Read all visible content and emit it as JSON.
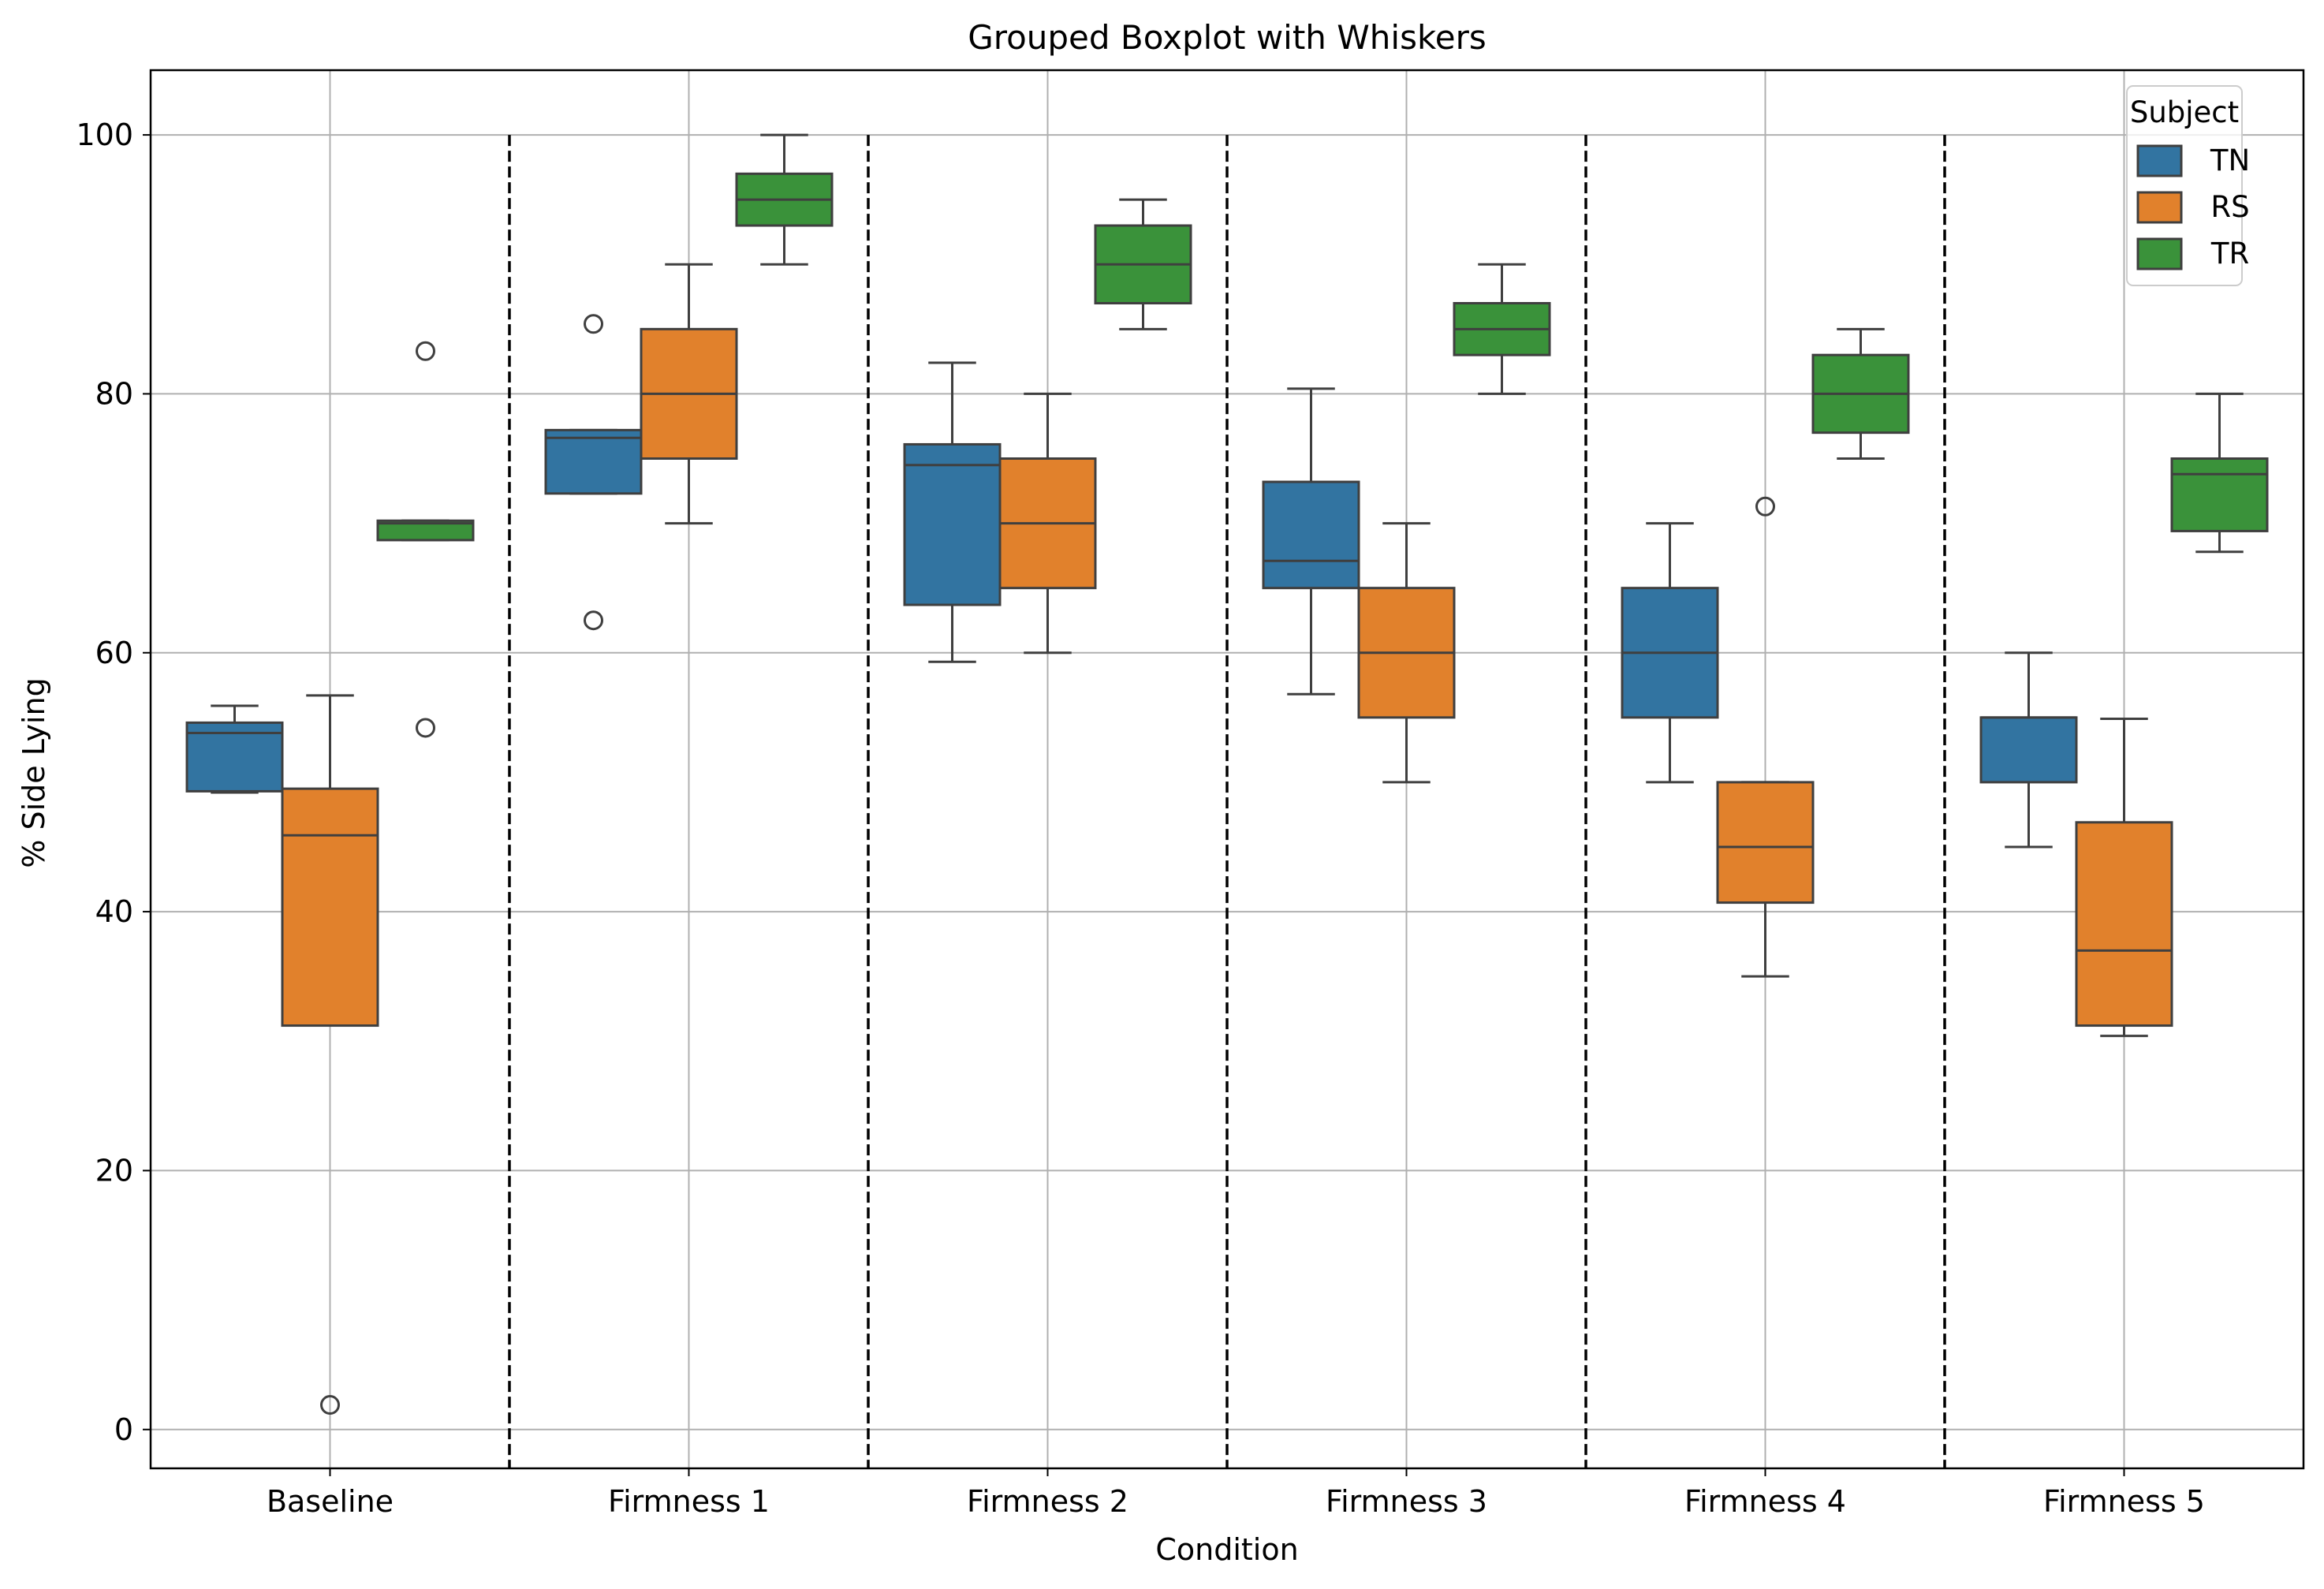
{
  "chart_data": {
    "type": "box",
    "title": "Grouped Boxplot with Whiskers",
    "xlabel": "Condition",
    "ylabel": "% Side Lying",
    "ylim": [
      -3,
      105
    ],
    "yticks": [
      0,
      20,
      40,
      60,
      80,
      100
    ],
    "grid": true,
    "legend_placement": "top-right",
    "legend_title": "Subject",
    "separators": "dashed vertical lines between conditions",
    "categories": [
      "Baseline",
      "Firmness 1",
      "Firmness 2",
      "Firmness 3",
      "Firmness 4",
      "Firmness 5"
    ],
    "series": [
      {
        "name": "TN",
        "color": "#3274a1",
        "boxes": [
          {
            "whislo": 49.2,
            "q1": 49.3,
            "med": 53.8,
            "q3": 54.6,
            "whishi": 55.9,
            "fliers": []
          },
          {
            "whislo": 72.3,
            "q1": 72.3,
            "med": 76.6,
            "q3": 77.2,
            "whishi": 77.2,
            "fliers": [
              62.5,
              85.4
            ]
          },
          {
            "whislo": 59.3,
            "q1": 63.7,
            "med": 74.5,
            "q3": 76.1,
            "whishi": 82.4,
            "fliers": []
          },
          {
            "whislo": 56.8,
            "q1": 65.0,
            "med": 67.1,
            "q3": 73.2,
            "whishi": 80.4,
            "fliers": []
          },
          {
            "whislo": 50.0,
            "q1": 55.0,
            "med": 60.0,
            "q3": 65.0,
            "whishi": 70.0,
            "fliers": []
          },
          {
            "whislo": 45.0,
            "q1": 50.0,
            "med": 55.0,
            "q3": 55.0,
            "whishi": 60.0,
            "fliers": []
          }
        ]
      },
      {
        "name": "RS",
        "color": "#e1812c",
        "boxes": [
          {
            "whislo": 31.2,
            "q1": 31.2,
            "med": 45.9,
            "q3": 49.5,
            "whishi": 56.7,
            "fliers": [
              1.9
            ]
          },
          {
            "whislo": 70.0,
            "q1": 75.0,
            "med": 80.0,
            "q3": 85.0,
            "whishi": 90.0,
            "fliers": []
          },
          {
            "whislo": 60.0,
            "q1": 65.0,
            "med": 70.0,
            "q3": 75.0,
            "whishi": 80.0,
            "fliers": []
          },
          {
            "whislo": 50.0,
            "q1": 55.0,
            "med": 60.0,
            "q3": 65.0,
            "whishi": 70.0,
            "fliers": []
          },
          {
            "whislo": 35.0,
            "q1": 40.7,
            "med": 45.0,
            "q3": 50.0,
            "whishi": 50.0,
            "fliers": [
              71.3
            ]
          },
          {
            "whislo": 30.4,
            "q1": 31.2,
            "med": 37.0,
            "q3": 46.9,
            "whishi": 54.9,
            "fliers": []
          }
        ]
      },
      {
        "name": "TR",
        "color": "#3a923a",
        "boxes": [
          {
            "whislo": 68.7,
            "q1": 68.7,
            "med": 70.0,
            "q3": 70.2,
            "whishi": 70.2,
            "fliers": [
              54.2,
              83.3
            ]
          },
          {
            "whislo": 90.0,
            "q1": 93.0,
            "med": 95.0,
            "q3": 97.0,
            "whishi": 100.0,
            "fliers": []
          },
          {
            "whislo": 85.0,
            "q1": 87.0,
            "med": 90.0,
            "q3": 93.0,
            "whishi": 95.0,
            "fliers": []
          },
          {
            "whislo": 80.0,
            "q1": 83.0,
            "med": 85.0,
            "q3": 87.0,
            "whishi": 90.0,
            "fliers": []
          },
          {
            "whislo": 75.0,
            "q1": 77.0,
            "med": 80.0,
            "q3": 83.0,
            "whishi": 85.0,
            "fliers": []
          },
          {
            "whislo": 67.8,
            "q1": 69.4,
            "med": 73.8,
            "q3": 75.0,
            "whishi": 80.0,
            "fliers": []
          }
        ]
      }
    ]
  }
}
